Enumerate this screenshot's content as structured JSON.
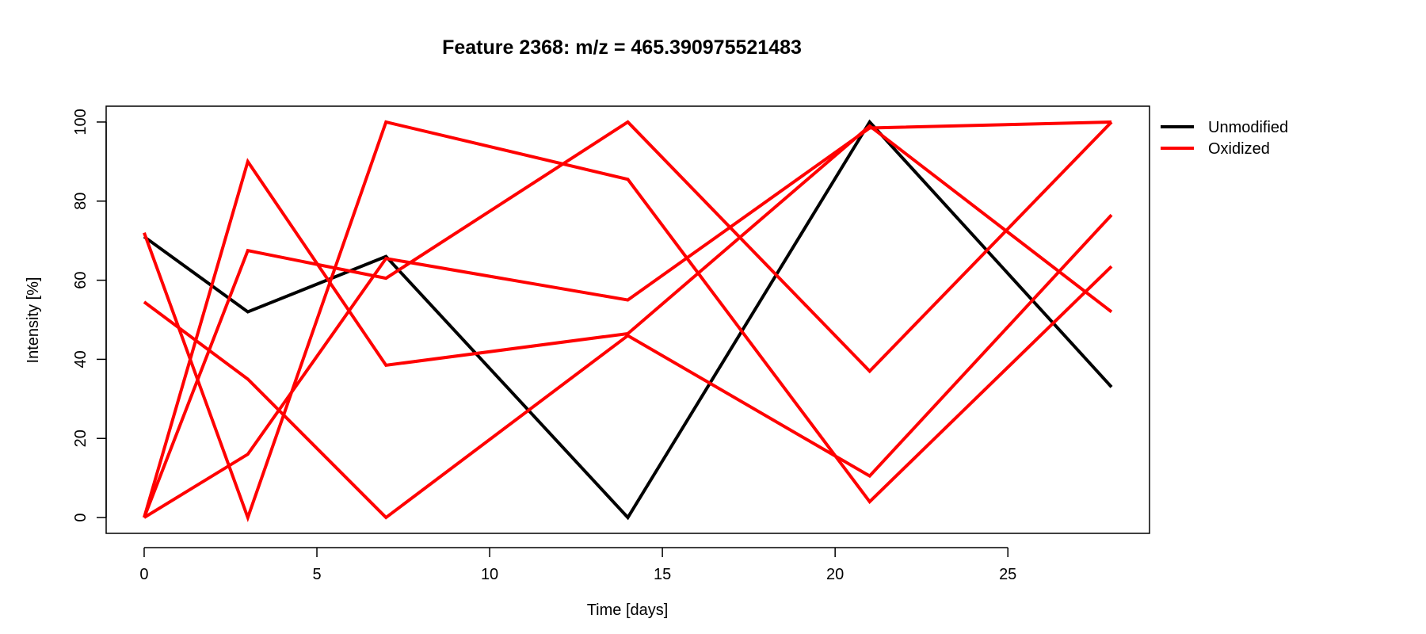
{
  "chart_data": {
    "type": "line",
    "title": "Feature 2368: m/z = 465.390975521483",
    "xlabel": "Time [days]",
    "ylabel": "Intensity [%]",
    "x": [
      0,
      3,
      7,
      14,
      21,
      28
    ],
    "xlim": [
      -1.1,
      29.1
    ],
    "ylim": [
      -4,
      104
    ],
    "xticks": [
      0,
      5,
      10,
      15,
      20,
      25
    ],
    "yticks": [
      0,
      20,
      40,
      60,
      80,
      100
    ],
    "grid": false,
    "legend_position": "outside-top-right",
    "legend": [
      {
        "label": "Unmodified",
        "color": "#000000"
      },
      {
        "label": "Oxidized",
        "color": "#ff0000"
      }
    ],
    "series": [
      {
        "group": "Unmodified",
        "color": "#000000",
        "values": [
          71,
          52,
          66,
          0,
          100,
          33
        ]
      },
      {
        "group": "Oxidized",
        "color": "#ff0000",
        "values": [
          72,
          0,
          100,
          85.5,
          4,
          63.5
        ]
      },
      {
        "group": "Oxidized",
        "color": "#ff0000",
        "values": [
          54.5,
          35,
          0,
          46,
          10.5,
          76.5
        ]
      },
      {
        "group": "Oxidized",
        "color": "#ff0000",
        "values": [
          0,
          67.5,
          60.5,
          100,
          37,
          100
        ]
      },
      {
        "group": "Oxidized",
        "color": "#ff0000",
        "values": [
          0,
          90,
          38.5,
          46.5,
          99,
          52
        ]
      },
      {
        "group": "Oxidized",
        "color": "#ff0000",
        "values": [
          0,
          16,
          65.5,
          55,
          98.5,
          100
        ]
      }
    ]
  }
}
